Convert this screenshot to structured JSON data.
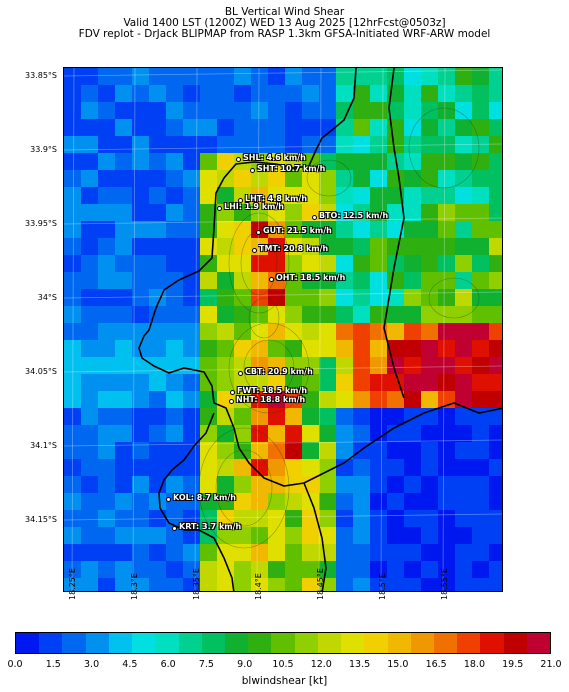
{
  "titles": {
    "line1": "BL Vertical Wind Shear",
    "line2": "Valid 1400 LST (1200Z) WED 13 Aug 2025 [12hrFcst@0503z]",
    "line3": "FDV replot - DrJack BLIPMAP from RASP 1.3km GFSA-Initiated WRF-ARW model"
  },
  "lat_labels": [
    "33.85°S",
    "33.9°S",
    "33.95°S",
    "34°S",
    "34.05°S",
    "34.1°S",
    "34.15°S"
  ],
  "lon_labels": [
    "18.25°E",
    "18.3°E",
    "18.35°E",
    "18.4°E",
    "18.45°E",
    "18.5°E",
    "18.55°E"
  ],
  "stations": [
    {
      "id": "SHL",
      "label": "SHL: 4.6 km/h"
    },
    {
      "id": "SHT",
      "label": "SHT: 10.7 km/h"
    },
    {
      "id": "LHT",
      "label": "LHT: 4.8 km/h"
    },
    {
      "id": "LHI",
      "label": "LHI: 1.9 km/h"
    },
    {
      "id": "BTO",
      "label": "BTO: 12.5 km/h"
    },
    {
      "id": "GUT",
      "label": "GUT: 21.5 km/h"
    },
    {
      "id": "TMT",
      "label": "TMT: 20.8 km/h"
    },
    {
      "id": "OHT",
      "label": "OHT: 18.5 km/h"
    },
    {
      "id": "CBT",
      "label": "CBT: 20.9 km/h"
    },
    {
      "id": "FWT",
      "label": "FWT: 18.5 km/h"
    },
    {
      "id": "NHT",
      "label": "NHT: 18.8 km/h"
    },
    {
      "id": "KOL",
      "label": "KOL: 8.7 km/h"
    },
    {
      "id": "KRT",
      "label": "KRT: 3.7 km/h"
    }
  ],
  "colorbar": {
    "label": "blwindshear [kt]",
    "ticks": [
      "0.0",
      "1.5",
      "3.0",
      "4.5",
      "6.0",
      "7.5",
      "9.0",
      "10.5",
      "12.0",
      "13.5",
      "15.0",
      "16.5",
      "18.0",
      "19.5",
      "21.0"
    ],
    "colors": [
      "#0018f0",
      "#0040f5",
      "#0068f0",
      "#0090f0",
      "#00c0f0",
      "#00e0e0",
      "#00e0c0",
      "#00d090",
      "#00c060",
      "#10b030",
      "#30b010",
      "#60c000",
      "#90d000",
      "#c0d800",
      "#e0e000",
      "#f0d000",
      "#f0b800",
      "#f09800",
      "#f07000",
      "#f04000",
      "#e01000",
      "#c00000",
      "#c00030"
    ]
  }
}
